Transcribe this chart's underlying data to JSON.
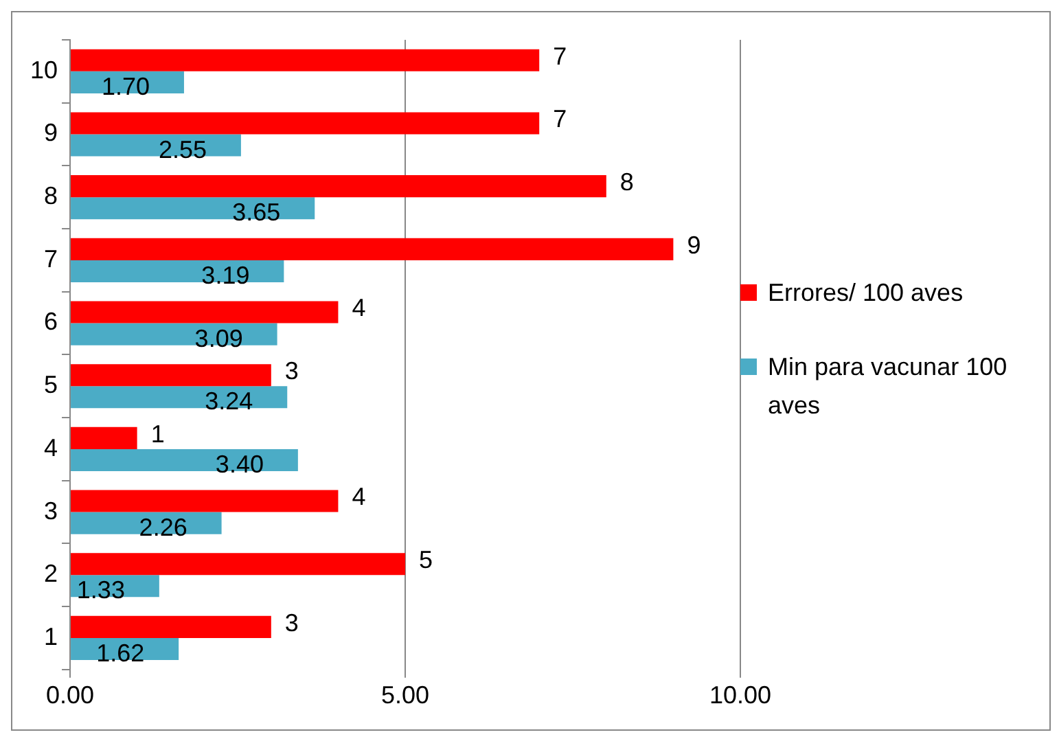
{
  "chart_data": {
    "type": "bar",
    "orientation": "horizontal",
    "categories": [
      "10",
      "9",
      "8",
      "7",
      "6",
      "5",
      "4",
      "3",
      "2",
      "1"
    ],
    "series": [
      {
        "name": "Errores/ 100 aves",
        "color": "#ff0000",
        "values": [
          7,
          7,
          8,
          9,
          4,
          3,
          1,
          4,
          5,
          3
        ],
        "value_labels": [
          "7",
          "7",
          "8",
          "9",
          "4",
          "3",
          "1",
          "4",
          "5",
          "3"
        ]
      },
      {
        "name": "Min para vacunar 100 aves",
        "color": "#4bacc6",
        "values": [
          1.7,
          2.55,
          3.65,
          3.19,
          3.09,
          3.24,
          3.4,
          2.26,
          1.33,
          1.62
        ],
        "value_labels": [
          "1.70",
          "2.55",
          "3.65",
          "3.19",
          "3.09",
          "3.24",
          "3.40",
          "2.26",
          "1.33",
          "1.62"
        ]
      }
    ],
    "xlim": [
      0,
      10
    ],
    "xticks": [
      {
        "value": 0,
        "label": "0.00"
      },
      {
        "value": 5,
        "label": "5.00"
      },
      {
        "value": 10,
        "label": "10.00"
      }
    ],
    "grid": "x",
    "legend": "right"
  }
}
